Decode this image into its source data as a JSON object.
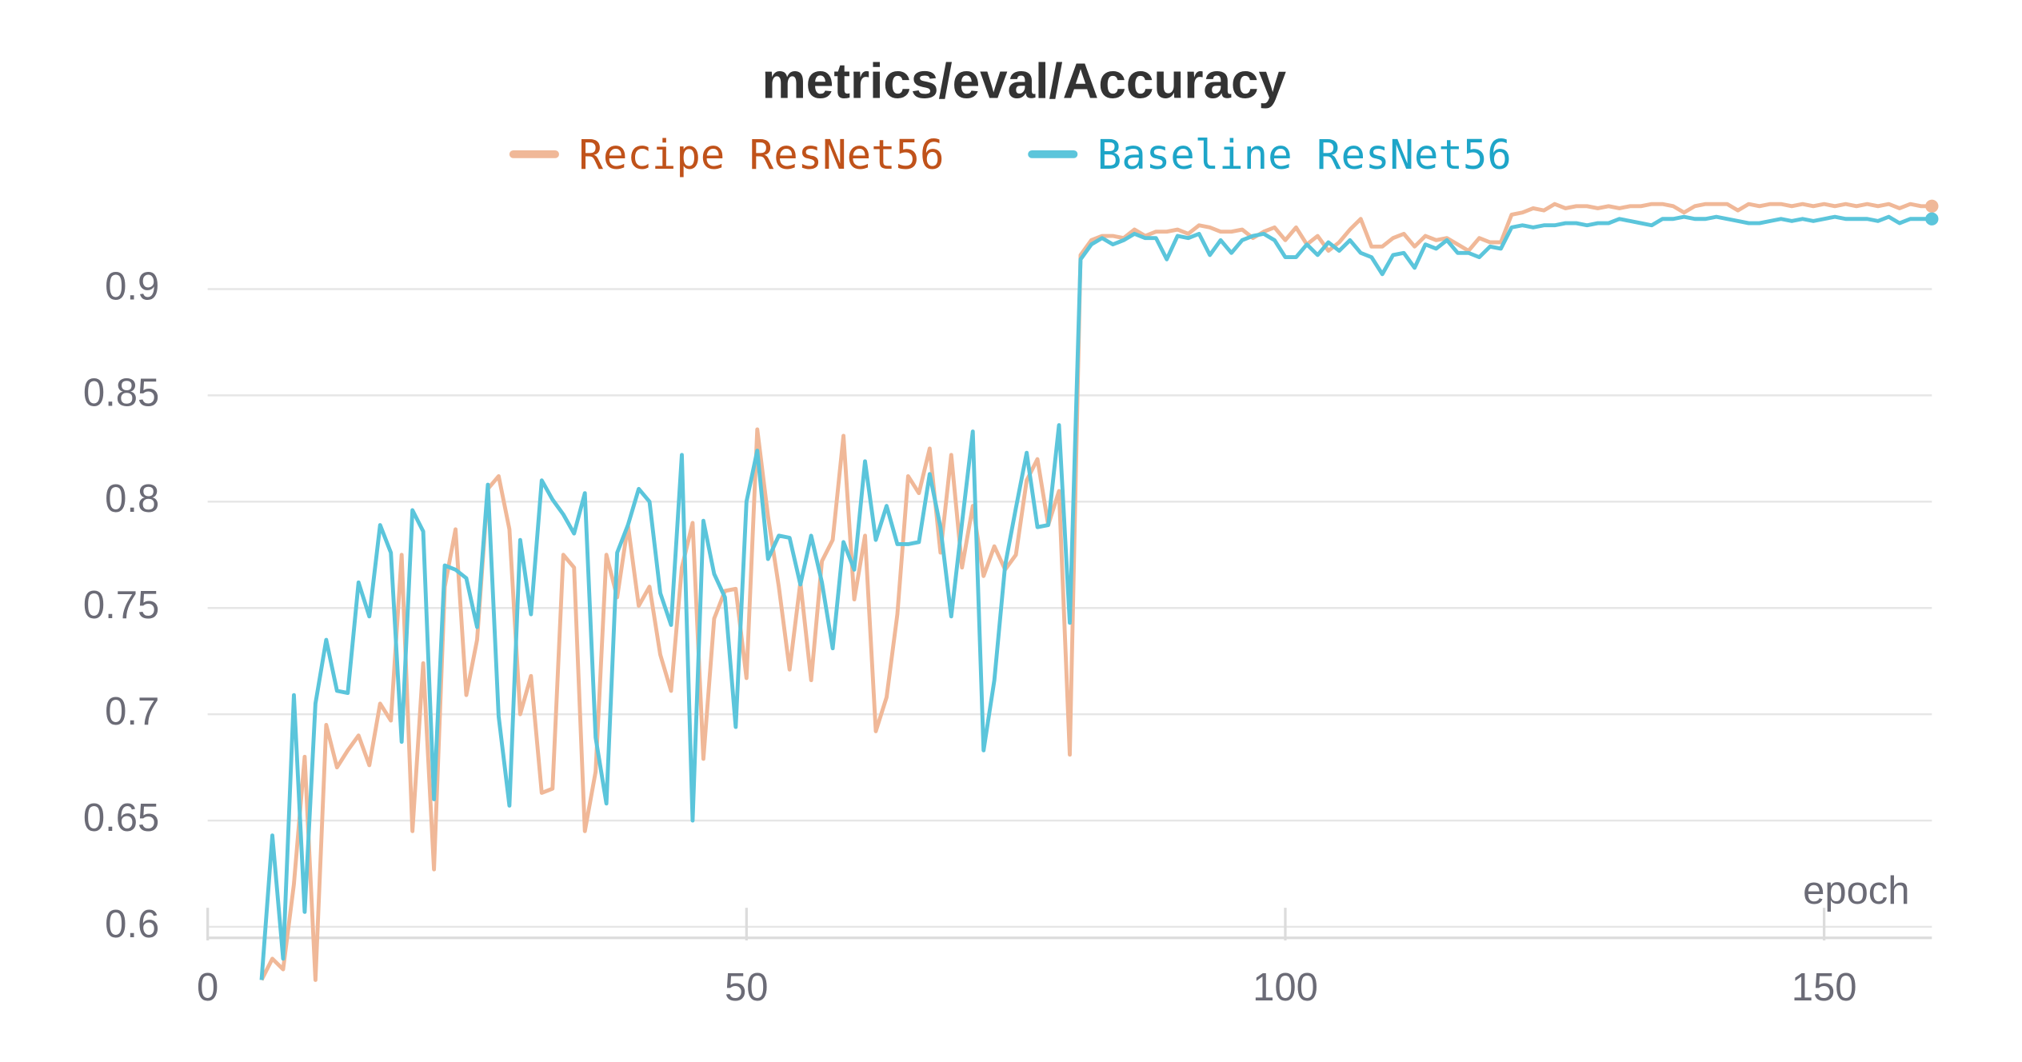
{
  "chart_data": {
    "type": "line",
    "title": "metrics/eval/Accuracy",
    "x_label": "epoch",
    "x": [
      5,
      6,
      7,
      8,
      9,
      10,
      11,
      12,
      13,
      14,
      15,
      16,
      17,
      18,
      19,
      20,
      21,
      22,
      23,
      24,
      25,
      26,
      27,
      28,
      29,
      30,
      31,
      32,
      33,
      34,
      35,
      36,
      37,
      38,
      39,
      40,
      41,
      42,
      43,
      44,
      45,
      46,
      47,
      48,
      49,
      50,
      51,
      52,
      53,
      54,
      55,
      56,
      57,
      58,
      59,
      60,
      61,
      62,
      63,
      64,
      65,
      66,
      67,
      68,
      69,
      70,
      71,
      72,
      73,
      74,
      75,
      76,
      77,
      78,
      79,
      80,
      81,
      82,
      83,
      84,
      85,
      86,
      87,
      88,
      89,
      90,
      91,
      92,
      93,
      94,
      95,
      96,
      97,
      98,
      99,
      100,
      101,
      102,
      103,
      104,
      105,
      106,
      107,
      108,
      109,
      110,
      111,
      112,
      113,
      114,
      115,
      116,
      117,
      118,
      119,
      120,
      121,
      122,
      123,
      124,
      125,
      126,
      127,
      128,
      129,
      130,
      131,
      132,
      133,
      134,
      135,
      136,
      137,
      138,
      139,
      140,
      141,
      142,
      143,
      144,
      145,
      146,
      147,
      148,
      149,
      150,
      151,
      152,
      153,
      154,
      155,
      156,
      157,
      158,
      159,
      160
    ],
    "series": [
      {
        "name": "Recipe ResNet56",
        "color": "#f0b898",
        "values": [
          0.575,
          0.585,
          0.58,
          0.62,
          0.68,
          0.575,
          0.695,
          0.675,
          0.683,
          0.69,
          0.676,
          0.705,
          0.697,
          0.775,
          0.645,
          0.724,
          0.627,
          0.76,
          0.787,
          0.709,
          0.735,
          0.806,
          0.812,
          0.787,
          0.7,
          0.718,
          0.663,
          0.665,
          0.775,
          0.769,
          0.645,
          0.673,
          0.775,
          0.755,
          0.789,
          0.751,
          0.76,
          0.728,
          0.711,
          0.769,
          0.79,
          0.679,
          0.745,
          0.758,
          0.759,
          0.717,
          0.834,
          0.793,
          0.76,
          0.721,
          0.762,
          0.716,
          0.772,
          0.782,
          0.831,
          0.754,
          0.784,
          0.692,
          0.708,
          0.747,
          0.812,
          0.804,
          0.825,
          0.776,
          0.822,
          0.769,
          0.798,
          0.765,
          0.779,
          0.768,
          0.775,
          0.81,
          0.82,
          0.789,
          0.805,
          0.681,
          0.916,
          0.923,
          0.925,
          0.925,
          0.924,
          0.928,
          0.925,
          0.927,
          0.927,
          0.928,
          0.926,
          0.93,
          0.929,
          0.927,
          0.927,
          0.928,
          0.924,
          0.927,
          0.929,
          0.923,
          0.929,
          0.921,
          0.925,
          0.918,
          0.922,
          0.928,
          0.933,
          0.92,
          0.92,
          0.924,
          0.926,
          0.92,
          0.925,
          0.923,
          0.924,
          0.921,
          0.918,
          0.924,
          0.922,
          0.922,
          0.935,
          0.936,
          0.938,
          0.937,
          0.94,
          0.938,
          0.939,
          0.939,
          0.938,
          0.939,
          0.938,
          0.939,
          0.939,
          0.94,
          0.94,
          0.939,
          0.936,
          0.939,
          0.94,
          0.94,
          0.94,
          0.937,
          0.94,
          0.939,
          0.94,
          0.94,
          0.939,
          0.94,
          0.939,
          0.94,
          0.939,
          0.94,
          0.939,
          0.94,
          0.939,
          0.94,
          0.938,
          0.94,
          0.939,
          0.939
        ]
      },
      {
        "name": "Baseline ResNet56",
        "color": "#5bc5db",
        "values": [
          0.575,
          0.643,
          0.585,
          0.709,
          0.607,
          0.705,
          0.735,
          0.711,
          0.71,
          0.762,
          0.746,
          0.789,
          0.776,
          0.687,
          0.796,
          0.786,
          0.66,
          0.77,
          0.768,
          0.764,
          0.741,
          0.808,
          0.699,
          0.657,
          0.782,
          0.747,
          0.81,
          0.801,
          0.794,
          0.785,
          0.804,
          0.689,
          0.658,
          0.776,
          0.789,
          0.806,
          0.8,
          0.757,
          0.742,
          0.822,
          0.65,
          0.791,
          0.766,
          0.755,
          0.694,
          0.8,
          0.824,
          0.773,
          0.784,
          0.783,
          0.761,
          0.784,
          0.762,
          0.731,
          0.781,
          0.768,
          0.819,
          0.782,
          0.798,
          0.78,
          0.78,
          0.781,
          0.813,
          0.788,
          0.746,
          0.79,
          0.833,
          0.683,
          0.716,
          0.77,
          0.797,
          0.823,
          0.788,
          0.789,
          0.836,
          0.743,
          0.914,
          0.921,
          0.924,
          0.921,
          0.923,
          0.926,
          0.924,
          0.924,
          0.914,
          0.925,
          0.924,
          0.926,
          0.916,
          0.923,
          0.917,
          0.923,
          0.925,
          0.926,
          0.923,
          0.915,
          0.915,
          0.921,
          0.916,
          0.922,
          0.918,
          0.923,
          0.917,
          0.915,
          0.907,
          0.916,
          0.917,
          0.91,
          0.921,
          0.919,
          0.923,
          0.917,
          0.917,
          0.915,
          0.92,
          0.919,
          0.929,
          0.93,
          0.929,
          0.93,
          0.93,
          0.931,
          0.931,
          0.93,
          0.931,
          0.931,
          0.933,
          0.932,
          0.931,
          0.93,
          0.933,
          0.933,
          0.934,
          0.933,
          0.933,
          0.934,
          0.933,
          0.932,
          0.931,
          0.931,
          0.932,
          0.933,
          0.932,
          0.933,
          0.932,
          0.933,
          0.934,
          0.933,
          0.933,
          0.933,
          0.932,
          0.934,
          0.931,
          0.933,
          0.933,
          0.933
        ]
      }
    ],
    "xlim": [
      0,
      160
    ],
    "xticks": [
      0,
      50,
      100,
      150
    ],
    "ylim": [
      0.585,
      0.945
    ],
    "yticks": [
      0.6,
      0.65,
      0.7,
      0.75,
      0.8,
      0.85,
      0.9
    ],
    "grid": true
  }
}
